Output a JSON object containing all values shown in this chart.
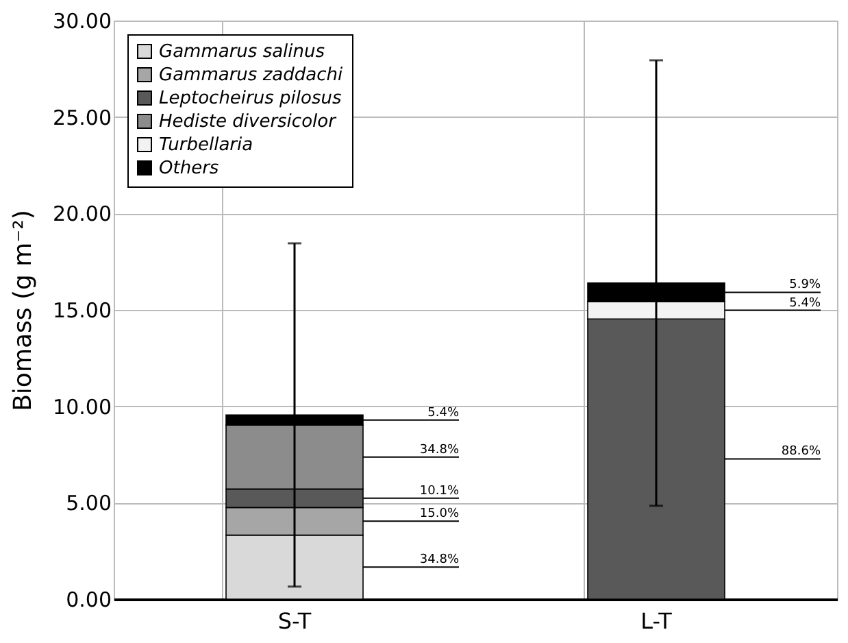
{
  "chart_data": {
    "type": "bar",
    "stacked": true,
    "ylabel": "Biomass (g m⁻²)",
    "categories": [
      "S-T",
      "L-T"
    ],
    "series": [
      {
        "name": "Gammarus salinus",
        "color": "#d9d9d9",
        "values": [
          3.32,
          0
        ]
      },
      {
        "name": "Gammarus zaddachi",
        "color": "#a6a6a6",
        "values": [
          1.43,
          0
        ]
      },
      {
        "name": "Leptocheirus pilosus",
        "color": "#595959",
        "values": [
          0.96,
          14.53
        ]
      },
      {
        "name": "Hediste diversicolor",
        "color": "#8c8c8c",
        "values": [
          3.32,
          0
        ]
      },
      {
        "name": "Turbellaria",
        "color": "#f2f2f2",
        "values": [
          0,
          0.89
        ]
      },
      {
        "name": "Others",
        "color": "#000000",
        "values": [
          0.52,
          0.97
        ],
        "errors": [
          8.9,
          11.55
        ]
      }
    ],
    "annotations": [
      {
        "text": "34.8%",
        "x": "S-T",
        "y": 1.66
      },
      {
        "text": "15.0%",
        "x": "S-T",
        "y": 4.04
      },
      {
        "text": "10.1%",
        "x": "S-T",
        "y": 5.23
      },
      {
        "text": "34.8%",
        "x": "S-T",
        "y": 7.37
      },
      {
        "text": "5.4%",
        "x": "S-T",
        "y": 9.29
      },
      {
        "text": "88.6%",
        "x": "L-T",
        "y": 7.27
      },
      {
        "text": "5.4%",
        "x": "L-T",
        "y": 14.98
      },
      {
        "text": "5.9%",
        "x": "L-T",
        "y": 15.91
      }
    ],
    "ylim": [
      0,
      30
    ],
    "yticks": [
      {
        "value": 0,
        "label": "0.00"
      },
      {
        "value": 5,
        "label": "5.00"
      },
      {
        "value": 10,
        "label": "10.00"
      },
      {
        "value": 15,
        "label": "15.00"
      },
      {
        "value": 20,
        "label": "20.00"
      },
      {
        "value": 25,
        "label": "25.00"
      },
      {
        "value": 30,
        "label": "30.00"
      }
    ],
    "grid": true,
    "legend": "top left"
  }
}
